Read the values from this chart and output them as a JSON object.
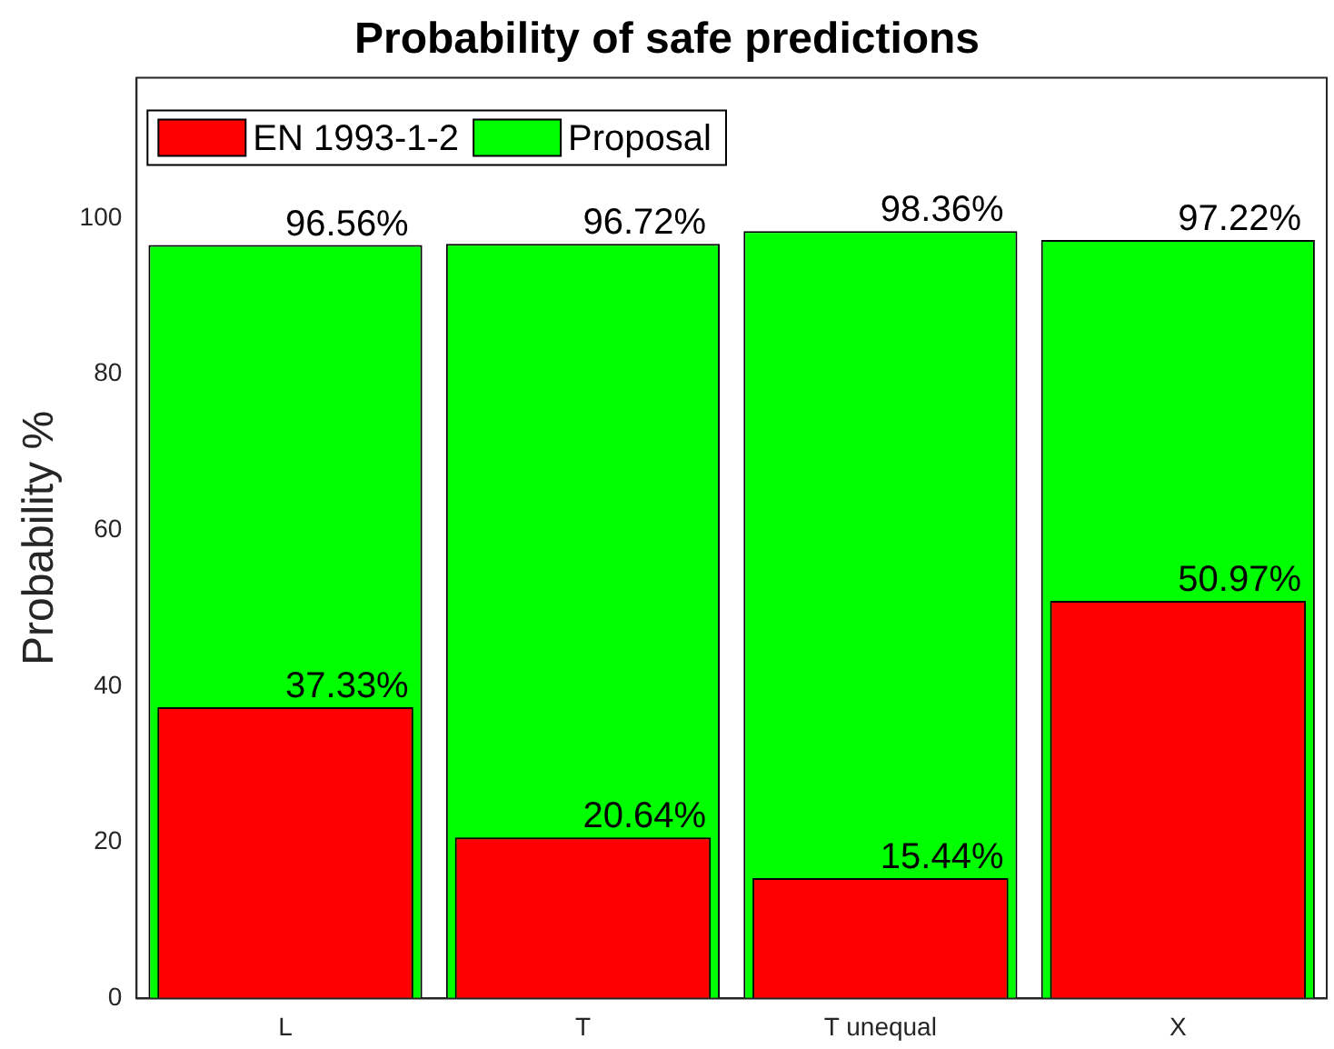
{
  "chart_data": {
    "type": "bar",
    "title": "Probability of safe predictions",
    "ylabel": "Probability %",
    "categories": [
      "L",
      "T",
      "T unequal",
      "X"
    ],
    "series": [
      {
        "name": "EN 1993-1-2",
        "color": "#ff0000",
        "values": [
          37.33,
          20.64,
          15.44,
          50.97
        ],
        "value_labels": [
          "37.33%",
          "20.64%",
          "15.44%",
          "50.97%"
        ]
      },
      {
        "name": "Proposal",
        "color": "#00ff00",
        "values": [
          96.56,
          96.72,
          98.36,
          97.22
        ],
        "value_labels": [
          "96.56%",
          "96.72%",
          "98.36%",
          "97.22%"
        ]
      }
    ],
    "ylim": [
      0,
      118
    ],
    "yticks": [
      0,
      20,
      40,
      60,
      80,
      100
    ],
    "grid": false,
    "legend": "top left"
  }
}
